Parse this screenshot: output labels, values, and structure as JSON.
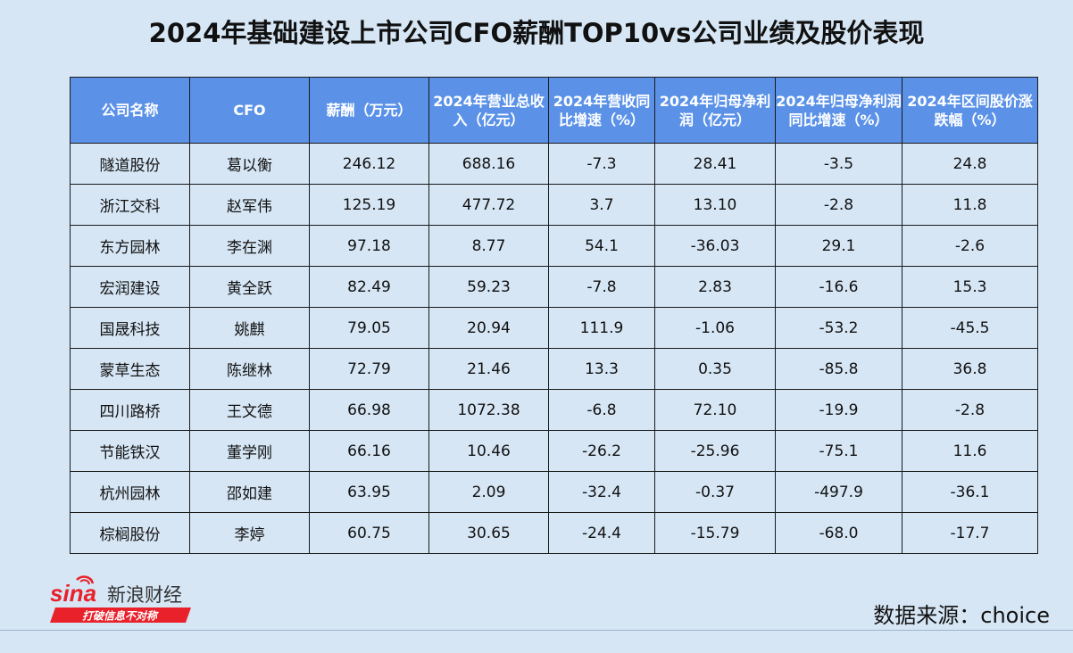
{
  "title": "2024年基础建设上市公司CFO薪酬TOP10vs公司业绩及股价表现",
  "table": {
    "headers": [
      "公司名称",
      "CFO",
      "薪酬（万元）",
      "2024年营业总收入（亿元）",
      "2024年营收同比增速（%）",
      "2024年归母净利润（亿元）",
      "2024年归母净利润同比增速（%）",
      "2024年区间股价涨跌幅（%）"
    ],
    "rows": [
      [
        "隧道股份",
        "葛以衡",
        "246.12",
        "688.16",
        "-7.3",
        "28.41",
        "-3.5",
        "24.8"
      ],
      [
        "浙江交科",
        "赵军伟",
        "125.19",
        "477.72",
        "3.7",
        "13.10",
        "-2.8",
        "11.8"
      ],
      [
        "东方园林",
        "李在渊",
        "97.18",
        "8.77",
        "54.1",
        "-36.03",
        "29.1",
        "-2.6"
      ],
      [
        "宏润建设",
        "黄全跃",
        "82.49",
        "59.23",
        "-7.8",
        "2.83",
        "-16.6",
        "15.3"
      ],
      [
        "国晟科技",
        "姚麒",
        "79.05",
        "20.94",
        "111.9",
        "-1.06",
        "-53.2",
        "-45.5"
      ],
      [
        "蒙草生态",
        "陈继林",
        "72.79",
        "21.46",
        "13.3",
        "0.35",
        "-85.8",
        "36.8"
      ],
      [
        "四川路桥",
        "王文德",
        "66.98",
        "1072.38",
        "-6.8",
        "72.10",
        "-19.9",
        "-2.8"
      ],
      [
        "节能铁汉",
        "董学刚",
        "66.16",
        "10.46",
        "-26.2",
        "-25.96",
        "-75.1",
        "11.6"
      ],
      [
        "杭州园林",
        "邵如建",
        "63.95",
        "2.09",
        "-32.4",
        "-0.37",
        "-497.9",
        "-36.1"
      ],
      [
        "棕榈股份",
        "李婷",
        "60.75",
        "30.65",
        "-24.4",
        "-15.79",
        "-68.0",
        "-17.7"
      ]
    ]
  },
  "logo": {
    "brand": "sina",
    "name": "新浪财经",
    "slogan": "打破信息不对称",
    "accent": "#e8212a"
  },
  "source": "数据来源：choice",
  "colors": {
    "background": "#d6e6f5",
    "header": "#5b92e8",
    "border": "#1a1a1a"
  }
}
